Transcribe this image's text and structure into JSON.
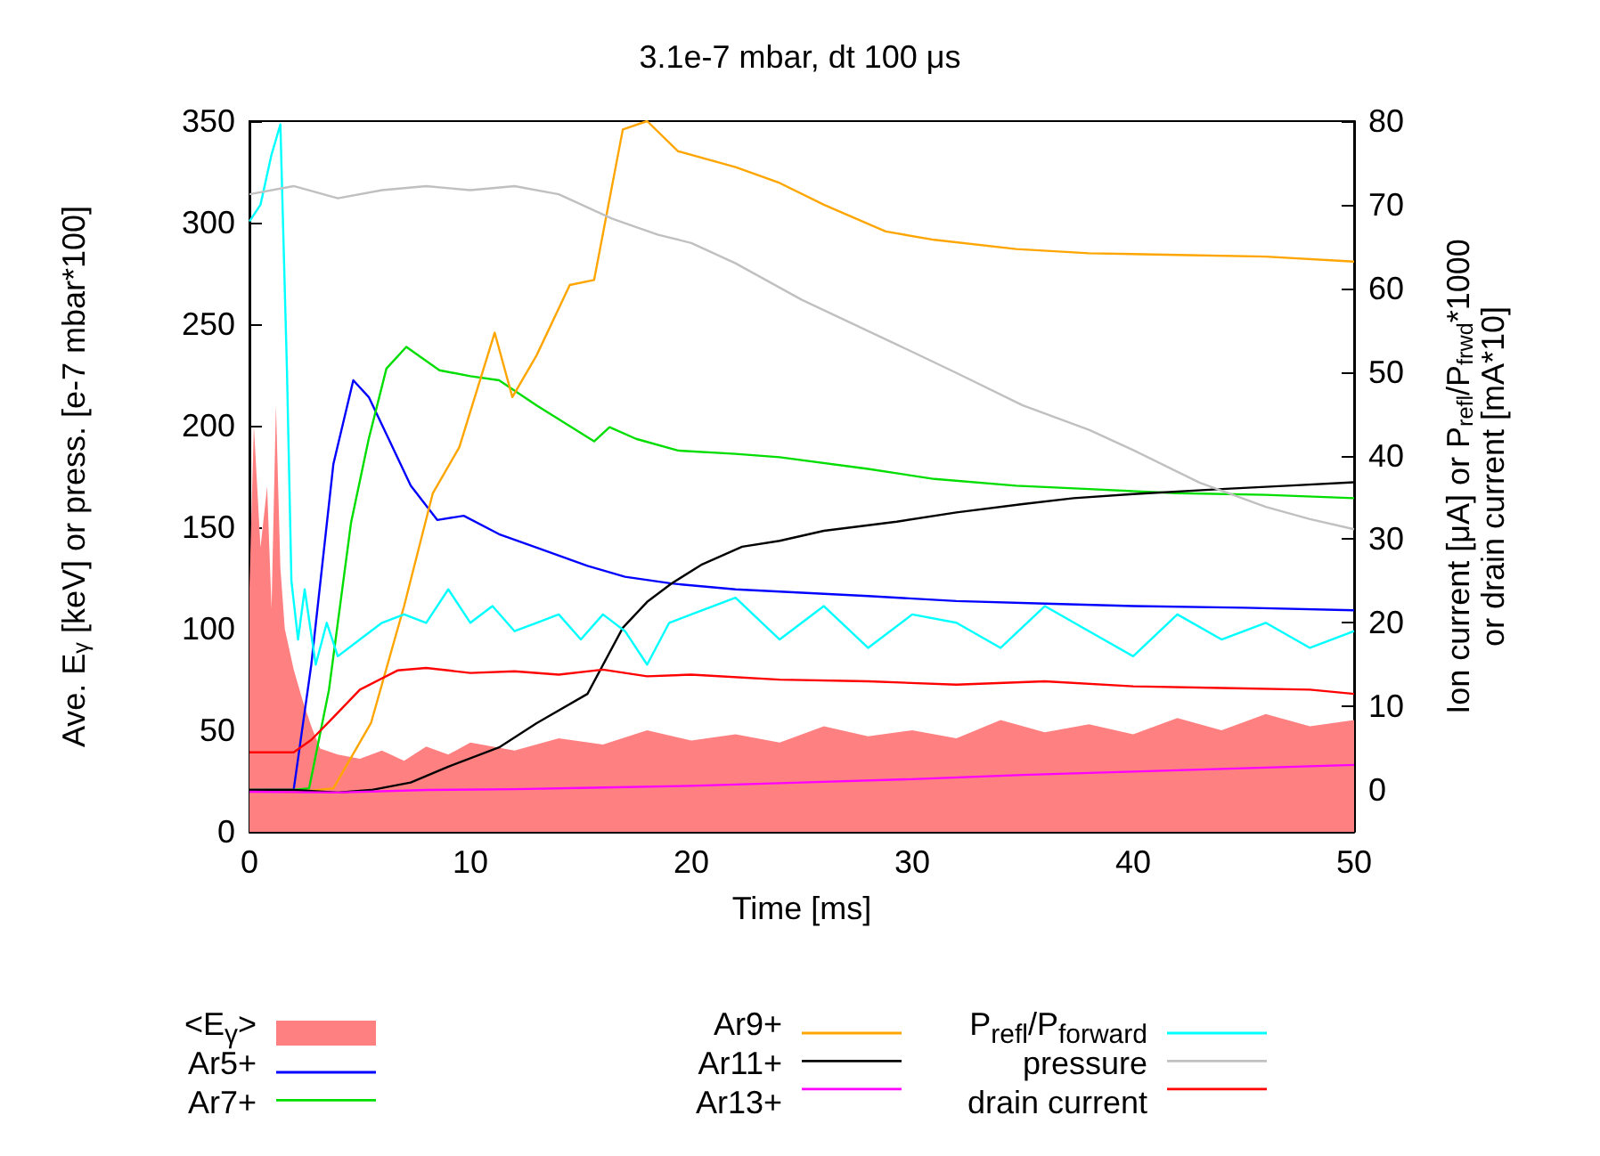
{
  "chart_data": {
    "type": "line",
    "title": "3.1e-7 mbar, dt 100 μs",
    "xlabel": "Time [ms]",
    "ylabel": "Ave. E$_{γ}$ [keV] or press. [e-7 mbar*100]",
    "y2label": "Ion current [μA] or P$_{refl}$/P$_{frwd}$*1000\nor drain current [mA*10]",
    "xlim": [
      0,
      50
    ],
    "xticks": [
      0,
      10,
      20,
      30,
      40,
      50
    ],
    "ylim": [
      0,
      350
    ],
    "yticks": [
      0,
      50,
      100,
      150,
      200,
      250,
      300,
      350
    ],
    "y2lim": [
      -5,
      80
    ],
    "y2ticks": [
      0,
      10,
      20,
      30,
      40,
      50,
      60,
      70,
      80
    ],
    "grid": false,
    "legend": "bottom",
    "marker": "none",
    "line_style": "solid",
    "series": [
      {
        "name": "<E$_{γ}$>",
        "type": "area",
        "color": "#ff8080",
        "x": [
          0,
          0.2,
          0.5,
          0.8,
          1.0,
          1.2,
          1.4,
          1.6,
          2.0,
          2.4,
          2.8,
          3.2,
          4,
          5,
          6,
          7,
          8,
          9,
          10,
          12,
          14,
          16,
          18,
          20,
          22,
          24,
          26,
          28,
          30,
          32,
          34,
          36,
          38,
          40,
          42,
          44,
          46,
          48,
          50
        ],
        "values": [
          120,
          200,
          140,
          170,
          110,
          210,
          130,
          100,
          80,
          65,
          52,
          41,
          38,
          36,
          40,
          35,
          42,
          38,
          44,
          40,
          46,
          43,
          50,
          45,
          48,
          44,
          52,
          47,
          50,
          46,
          55,
          49,
          53,
          48,
          56,
          50,
          58,
          52,
          55
        ]
      },
      {
        "name": "Ar5+",
        "axis": "y2",
        "color": "#0000ff",
        "x": [
          0,
          1,
          2,
          2.8,
          3.8,
          4.7,
          5.4,
          6.3,
          7.3,
          8.5,
          9.7,
          11.3,
          13,
          15.3,
          17,
          19.1,
          22,
          25,
          28,
          32,
          36,
          40,
          45,
          50
        ],
        "values": [
          0,
          0,
          0,
          15,
          39,
          49,
          47,
          42,
          36.4,
          32.3,
          32.8,
          30.6,
          29,
          26.8,
          25.5,
          24.7,
          24,
          23.6,
          23.2,
          22.6,
          22.3,
          22,
          21.8,
          21.5
        ]
      },
      {
        "name": "Ar7+",
        "axis": "y2",
        "color": "#00dd00",
        "x": [
          0,
          1,
          2,
          2.7,
          3.6,
          4.6,
          5.4,
          6.2,
          7.1,
          8.6,
          10,
          11.3,
          13,
          15.6,
          16.3,
          17.5,
          19.4,
          22,
          24,
          28,
          31,
          34.7,
          38,
          42,
          46,
          50
        ],
        "values": [
          0,
          0,
          0,
          0.2,
          12,
          32,
          42,
          50.4,
          53,
          50.2,
          49.5,
          49,
          46,
          41.7,
          43.4,
          42,
          40.6,
          40.2,
          39.8,
          38.4,
          37.2,
          36.4,
          36,
          35.5,
          35.3,
          34.9
        ]
      },
      {
        "name": "Ar9+",
        "axis": "y2",
        "color": "#ffa500",
        "x": [
          0,
          2,
          3.8,
          5.5,
          7,
          8.3,
          9.5,
          11.1,
          11.9,
          13,
          14.5,
          15.6,
          16.9,
          18,
          19.4,
          22,
          24,
          26,
          28.8,
          31,
          34.7,
          38,
          42,
          46,
          50
        ],
        "values": [
          0,
          -0.3,
          0.2,
          8,
          22,
          35.5,
          41,
          54.7,
          47,
          52,
          60.4,
          61,
          79,
          80,
          76.4,
          74.5,
          72.6,
          70,
          66.8,
          65.8,
          64.7,
          64.2,
          64,
          63.8,
          63.2
        ]
      },
      {
        "name": "Ar11+",
        "axis": "y2",
        "color": "#000000",
        "x": [
          0,
          2,
          4,
          5.5,
          7.3,
          9,
          11.3,
          13,
          15.3,
          16.9,
          18,
          19.1,
          20.5,
          22.3,
          24,
          26,
          29.3,
          32,
          35,
          37.3,
          40,
          44,
          47,
          50
        ],
        "values": [
          0,
          0,
          -0.3,
          0,
          0.9,
          2.8,
          5.1,
          8,
          11.5,
          19.4,
          22.5,
          24.7,
          27,
          29.1,
          29.8,
          31,
          32.1,
          33.2,
          34.2,
          34.9,
          35.4,
          36,
          36.4,
          36.8
        ]
      },
      {
        "name": "Ar13+",
        "axis": "y2",
        "color": "#ff00ff",
        "x": [
          0,
          4,
          8,
          12,
          16,
          20,
          25,
          30,
          35,
          40,
          45,
          50
        ],
        "values": [
          -0.2,
          -0.3,
          0,
          0.1,
          0.3,
          0.5,
          0.9,
          1.3,
          1.8,
          2.2,
          2.6,
          3.0
        ]
      },
      {
        "name": "P$_{refl}$/P$_{forward}$",
        "axis": "y2",
        "color": "#00ffff",
        "x": [
          0,
          0.5,
          1.0,
          1.4,
          1.7,
          1.9,
          2.2,
          2.5,
          3,
          3.5,
          4,
          5,
          6,
          7,
          8,
          9,
          10,
          11,
          12,
          13,
          14,
          15,
          16,
          17,
          18,
          19,
          20,
          22,
          24,
          26,
          28,
          30,
          32,
          34,
          36,
          38,
          40,
          42,
          44,
          46,
          48,
          50
        ],
        "values": [
          68,
          70,
          76,
          79.6,
          50,
          25,
          18,
          24,
          15,
          20,
          16,
          18,
          20,
          21,
          20,
          24,
          20,
          22,
          19,
          20,
          21,
          18,
          21,
          19,
          15,
          20,
          21,
          23,
          18,
          22,
          17,
          21,
          20,
          17,
          22,
          19,
          16,
          21,
          18,
          20,
          17,
          19
        ]
      },
      {
        "name": "pressure",
        "color": "#c0c0c0",
        "x": [
          0,
          2,
          4,
          6,
          8,
          10,
          12,
          14,
          16.4,
          18.5,
          20,
          22,
          25,
          29.3,
          32,
          35,
          38,
          40,
          43,
          46,
          48,
          50
        ],
        "values": [
          314,
          318,
          312,
          316,
          318,
          316,
          318,
          314,
          302,
          294,
          290,
          280,
          262,
          240,
          226,
          210,
          198,
          188,
          172,
          160,
          154,
          149
        ]
      },
      {
        "name": "drain current",
        "axis": "y2",
        "color": "#ff0000",
        "x": [
          0,
          1,
          2,
          2.8,
          3.8,
          5,
          6.7,
          8,
          10,
          12,
          14,
          16,
          18,
          20,
          24,
          28,
          32,
          36,
          40,
          44,
          48,
          50
        ],
        "values": [
          4.5,
          4.5,
          4.5,
          6,
          8.7,
          12,
          14.3,
          14.6,
          14,
          14.2,
          13.8,
          14.4,
          13.6,
          13.8,
          13.2,
          13,
          12.6,
          13,
          12.4,
          12.2,
          12,
          11.5
        ]
      }
    ]
  }
}
